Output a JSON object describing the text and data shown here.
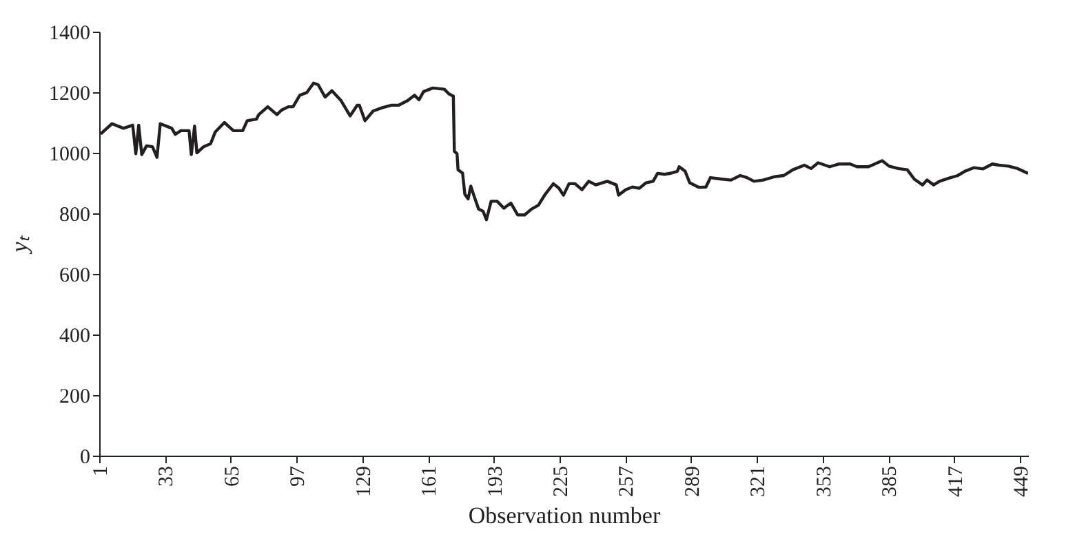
{
  "chart_data": {
    "type": "line",
    "xlabel": "Observation number",
    "ylabel": "yₜ",
    "xlim": [
      1,
      453
    ],
    "xticks": [
      1,
      33,
      65,
      97,
      129,
      161,
      193,
      225,
      257,
      289,
      321,
      353,
      385,
      417,
      449
    ],
    "ylim": [
      0,
      1400
    ],
    "yticks": [
      0,
      200,
      400,
      600,
      800,
      1000,
      1200,
      1400
    ],
    "grid": false,
    "legend": false,
    "marker": "none",
    "line_style": "solid",
    "series": [
      {
        "color": "#231f20",
        "x": [
          1.7,
          3.9,
          7.2,
          12.8,
          17.3,
          18.8,
          20.2,
          21.7,
          24,
          26.9,
          29.1,
          30.7,
          36.3,
          38,
          40.7,
          44.7,
          45.8,
          47.4,
          48.5,
          51.8,
          55.2,
          57.4,
          61.9,
          66.3,
          70.8,
          73,
          77.5,
          78.6,
          83,
          87.5,
          89.7,
          93,
          95.3,
          98.6,
          102,
          105.3,
          107.5,
          110.9,
          114.2,
          118.7,
          123.1,
          126.5,
          127.6,
          130.3,
          134.3,
          138.8,
          143.2,
          146.6,
          151,
          154.4,
          156.6,
          158.8,
          163.3,
          168.9,
          171.1,
          173.3,
          173.8,
          175.1,
          175.6,
          177.8,
          178.9,
          180.5,
          181.8,
          183.4,
          185.6,
          187.8,
          189.4,
          191.7,
          194.6,
          197.9,
          201.3,
          204.6,
          208,
          211.3,
          214.7,
          218,
          222,
          224.7,
          226.9,
          229.6,
          232.5,
          235.9,
          239.2,
          242.6,
          248.2,
          252.6,
          253.7,
          257.1,
          260.4,
          263.8,
          267.1,
          270.5,
          272.7,
          276.1,
          279.4,
          282.3,
          283.2,
          286.1,
          288.3,
          292.8,
          296.2,
          298.4,
          304,
          308.4,
          312.9,
          316.2,
          319.6,
          324,
          329.6,
          334.1,
          338.5,
          344.1,
          347.4,
          350.8,
          356.4,
          360.8,
          366.4,
          369.7,
          375.3,
          382,
          385.3,
          389.8,
          394.2,
          397.6,
          401.6,
          403.8,
          407,
          409.9,
          414.4,
          418.8,
          422.2,
          426.7,
          431.1,
          435.6,
          438.9,
          443.4,
          447.9,
          453
        ],
        "values": [
          1062,
          1076,
          1096,
          1081,
          1091,
          997,
          1091,
          994,
          1023,
          1020,
          985,
          1096,
          1081,
          1061,
          1073,
          1073,
          994,
          1088,
          1000,
          1020,
          1030,
          1068,
          1100,
          1073,
          1073,
          1106,
          1111,
          1126,
          1152,
          1126,
          1141,
          1152,
          1152,
          1190,
          1199,
          1230,
          1225,
          1184,
          1205,
          1172,
          1122,
          1157,
          1157,
          1106,
          1138,
          1149,
          1157,
          1157,
          1172,
          1190,
          1175,
          1202,
          1214,
          1210,
          1195,
          1187,
          1005,
          997,
          944,
          933,
          863,
          848,
          890,
          857,
          814,
          807,
          779,
          840,
          840,
          817,
          834,
          795,
          795,
          814,
          827,
          863,
          898,
          883,
          860,
          898,
          898,
          878,
          906,
          894,
          906,
          894,
          860,
          878,
          887,
          883,
          901,
          906,
          932,
          929,
          933,
          939,
          954,
          939,
          901,
          886,
          887,
          918,
          913,
          910,
          925,
          918,
          906,
          910,
          921,
          925,
          944,
          959,
          948,
          967,
          954,
          963,
          963,
          954,
          954,
          974,
          956,
          948,
          944,
          913,
          894,
          910,
          894,
          906,
          916,
          925,
          939,
          951,
          947,
          963,
          959,
          956,
          948,
          932
        ]
      }
    ]
  }
}
